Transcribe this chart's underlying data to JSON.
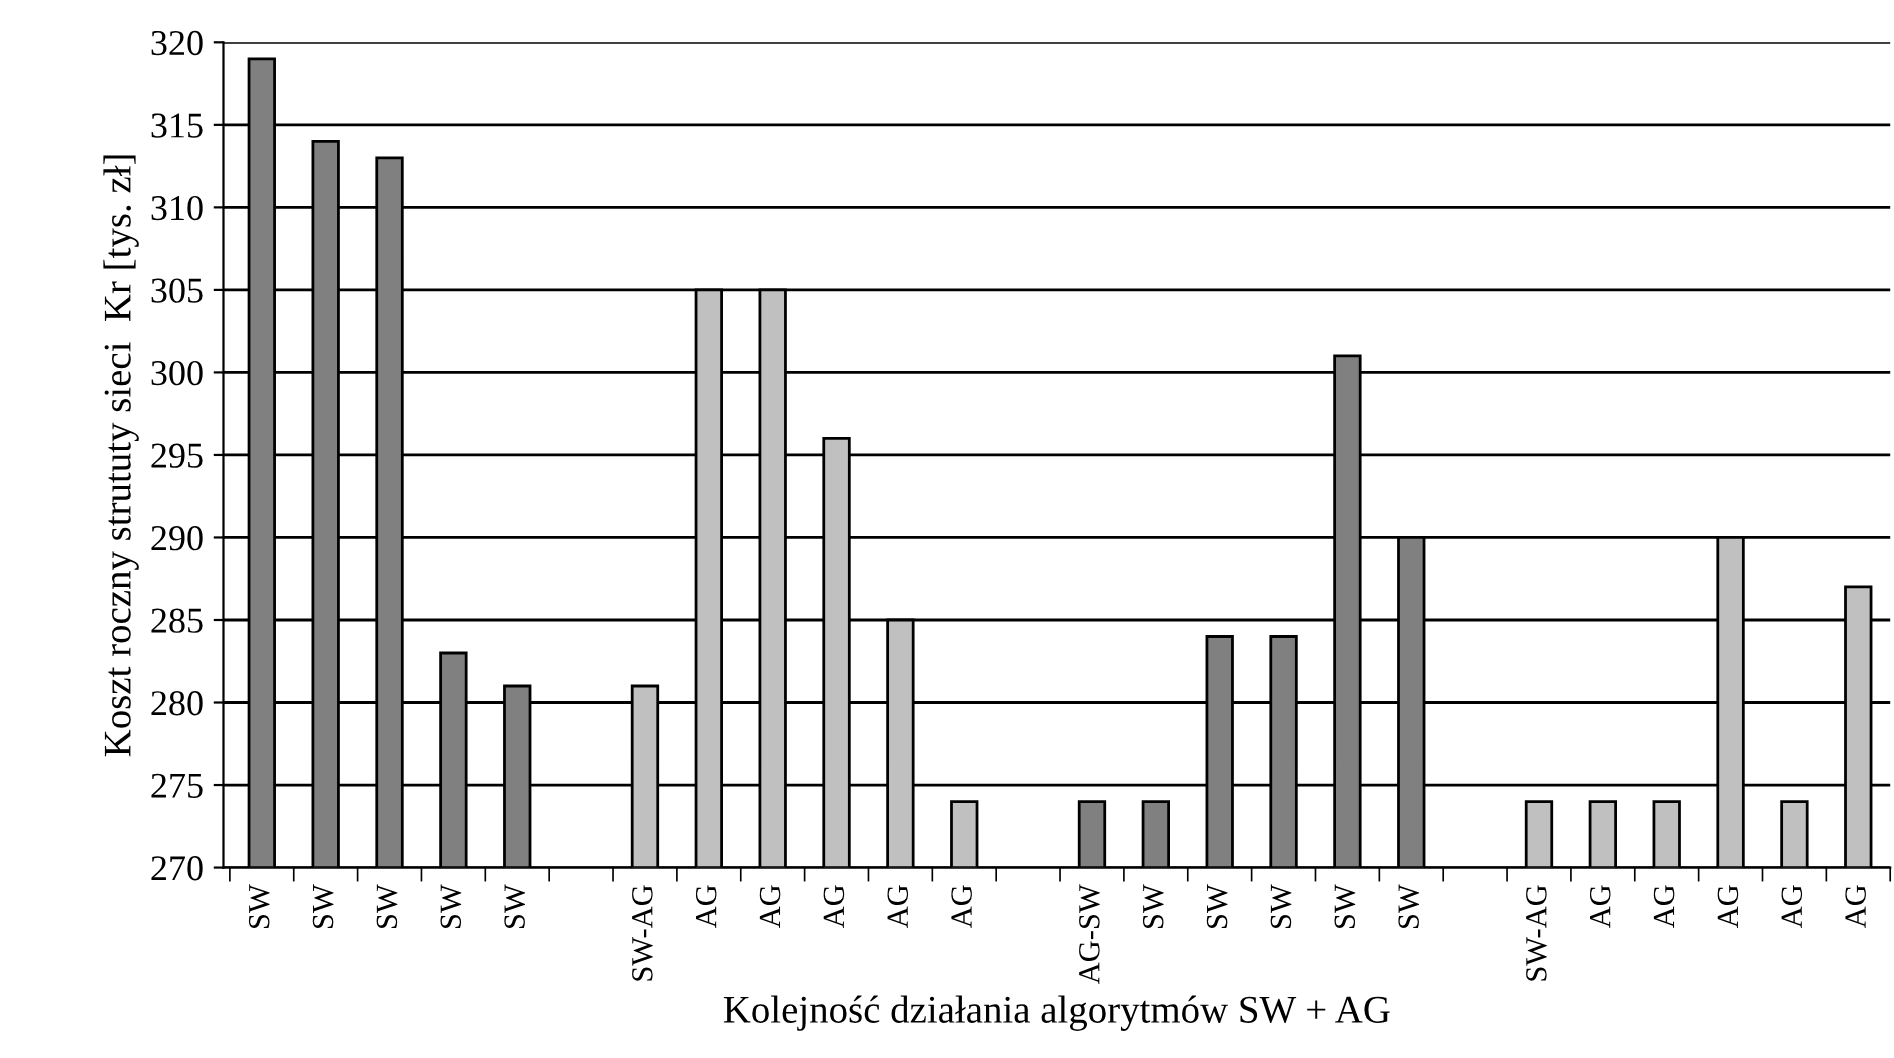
{
  "chart_data": {
    "type": "bar",
    "xlabel": "Kolejność działania algorytmów SW + AG",
    "ylabel": "Koszt roczny strututy sieci  Kr [tys. zł]",
    "categories": [
      "SW",
      "SW",
      "SW",
      "SW",
      "SW",
      null,
      "SW-AG",
      "AG",
      "AG",
      "AG",
      "AG",
      "AG",
      null,
      "AG-SW",
      "SW",
      "SW",
      "SW",
      "SW",
      "SW",
      null,
      "SW-AG",
      "AG",
      "AG",
      "AG",
      "AG",
      "AG"
    ],
    "values": [
      319,
      314,
      313,
      283,
      281,
      null,
      281,
      305,
      305,
      296,
      285,
      274,
      null,
      274,
      274,
      284,
      284,
      301,
      290,
      null,
      274,
      274,
      274,
      290,
      274,
      287
    ],
    "colors": [
      "#808080",
      "#808080",
      "#808080",
      "#808080",
      "#808080",
      "#808080",
      "#c0c0c0",
      "#c0c0c0",
      "#c0c0c0",
      "#c0c0c0",
      "#c0c0c0",
      "#c0c0c0",
      "#808080",
      "#808080",
      "#808080",
      "#808080",
      "#808080",
      "#808080",
      "#808080",
      "#808080",
      "#c0c0c0",
      "#c0c0c0",
      "#c0c0c0",
      "#c0c0c0",
      "#c0c0c0",
      "#c0c0c0"
    ],
    "ylim": [
      270,
      320
    ],
    "yticks": [
      270,
      275,
      280,
      285,
      290,
      295,
      300,
      305,
      310,
      315,
      320
    ],
    "grid": "y",
    "legend": false
  }
}
